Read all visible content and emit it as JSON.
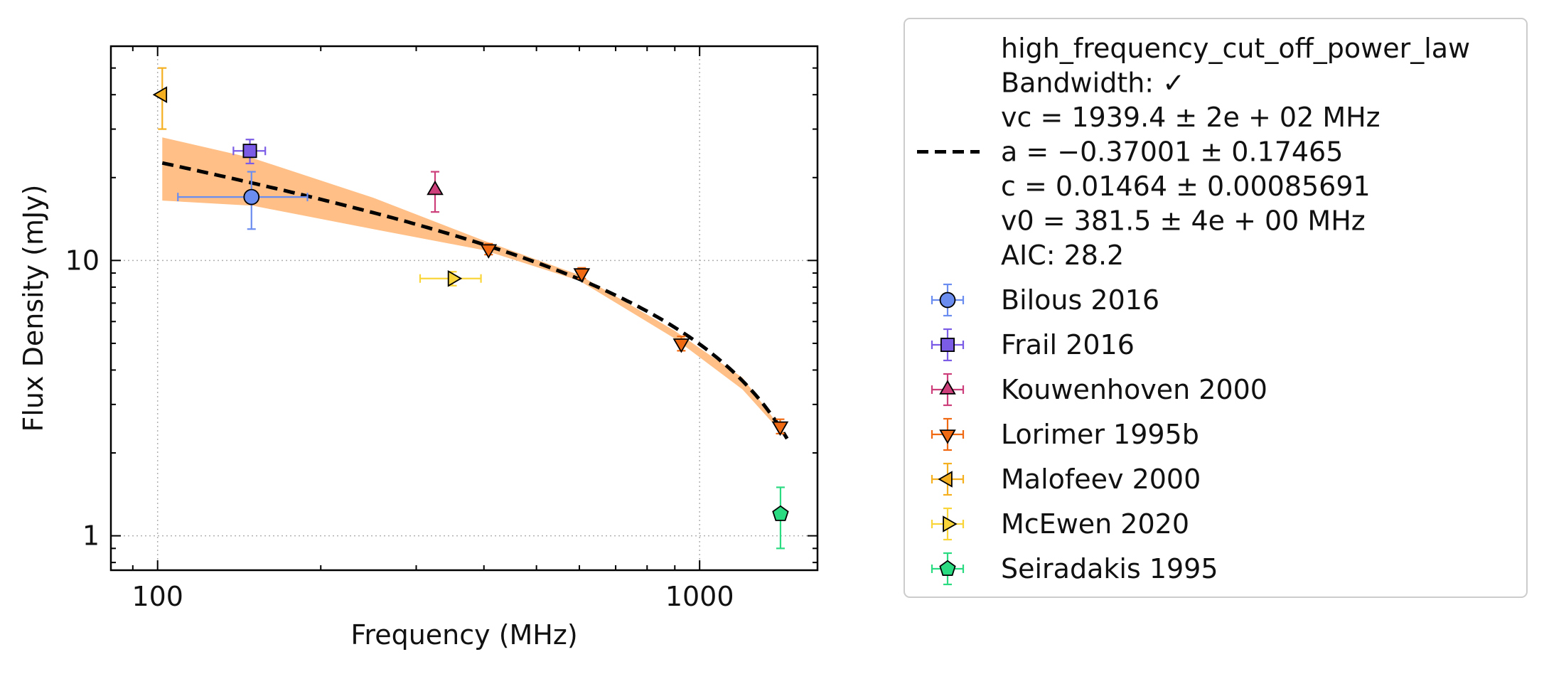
{
  "chart_data": {
    "type": "scatter",
    "title": "",
    "xlabel": "Frequency (MHz)",
    "ylabel": "Flux Density (mJy)",
    "xscale": "log",
    "yscale": "log",
    "xlim": [
      82,
      1650
    ],
    "ylim": [
      0.75,
      60
    ],
    "grid": true,
    "legend_position": "outside-right",
    "x_ticks": [
      {
        "value": 100,
        "label": "100"
      },
      {
        "value": 1000,
        "label": "1000"
      }
    ],
    "y_ticks": [
      {
        "value": 1,
        "label": "1"
      },
      {
        "value": 10,
        "label": "10"
      }
    ],
    "fit": {
      "model_name": "high_frequency_cut_off_power_law",
      "label_lines": [
        "high_frequency_cut_off_power_law",
        "Bandwidth: ✓",
        "vc = 1939.4 ± 2e + 02 MHz",
        "a = −0.37001 ± 0.17465",
        "c = 0.01464 ± 0.00085691",
        "v0 = 381.5 ± 4e + 00 MHz",
        "AIC: 28.2"
      ],
      "vc": 1939.4,
      "a": -0.37001,
      "c": 0.01464,
      "v0": 381.5,
      "x_range": [
        102,
        1450
      ],
      "line_color": "#000000",
      "band_color": "#ffbf86",
      "band_upper": [
        [
          102,
          28.0
        ],
        [
          150,
          23.5
        ],
        [
          250,
          16.9
        ],
        [
          400,
          11.8
        ],
        [
          600,
          8.85
        ],
        [
          900,
          5.55
        ],
        [
          1200,
          3.75
        ],
        [
          1450,
          2.3
        ]
      ],
      "band_lower": [
        [
          102,
          16.5
        ],
        [
          150,
          15.8
        ],
        [
          250,
          13.0
        ],
        [
          400,
          10.9
        ],
        [
          600,
          8.45
        ],
        [
          900,
          5.2
        ],
        [
          1200,
          3.4
        ],
        [
          1450,
          2.25
        ]
      ]
    },
    "series": [
      {
        "name": "Bilous 2016",
        "marker": "circle",
        "color": "#6b8df0",
        "points": [
          {
            "x": 149,
            "y": 17.0,
            "xerr": [
              40,
              40
            ],
            "yerr": [
              4.0,
              4.0
            ]
          }
        ]
      },
      {
        "name": "Frail 2016",
        "marker": "square",
        "color": "#7b5ce6",
        "points": [
          {
            "x": 148,
            "y": 25.0,
            "xerr": [
              10,
              10
            ],
            "yerr": [
              2.5,
              2.5
            ]
          }
        ]
      },
      {
        "name": "Kouwenhoven 2000",
        "marker": "triangle-up",
        "color": "#cc3f7a",
        "points": [
          {
            "x": 325,
            "y": 18.0,
            "xerr": [
              0,
              0
            ],
            "yerr": [
              3.0,
              3.0
            ]
          }
        ]
      },
      {
        "name": "Lorimer 1995b",
        "marker": "triangle-down",
        "color": "#f06a14",
        "points": [
          {
            "x": 408,
            "y": 11.0,
            "xerr": [
              0,
              0
            ],
            "yerr": [
              0.5,
              0.5
            ]
          },
          {
            "x": 606,
            "y": 9.0,
            "xerr": [
              0,
              0
            ],
            "yerr": [
              0.4,
              0.4
            ]
          },
          {
            "x": 925,
            "y": 5.0,
            "xerr": [
              0,
              0
            ],
            "yerr": [
              0.3,
              0.3
            ]
          },
          {
            "x": 1408,
            "y": 2.5,
            "xerr": [
              0,
              0
            ],
            "yerr": [
              0.15,
              0.15
            ]
          }
        ]
      },
      {
        "name": "Malofeev 2000",
        "marker": "triangle-left",
        "color": "#f5b021",
        "points": [
          {
            "x": 102,
            "y": 40.0,
            "xerr": [
              0,
              0
            ],
            "yerr": [
              10.0,
              10.0
            ]
          }
        ]
      },
      {
        "name": "McEwen 2020",
        "marker": "triangle-right",
        "color": "#fad53a",
        "points": [
          {
            "x": 350,
            "y": 8.6,
            "xerr": [
              45,
              45
            ],
            "yerr": [
              0.5,
              0.5
            ]
          }
        ]
      },
      {
        "name": "Seiradakis 1995",
        "marker": "pentagon",
        "color": "#2bdb82",
        "points": [
          {
            "x": 1410,
            "y": 1.2,
            "xerr": [
              0,
              0
            ],
            "yerr": [
              0.3,
              0.3
            ]
          }
        ]
      }
    ]
  }
}
